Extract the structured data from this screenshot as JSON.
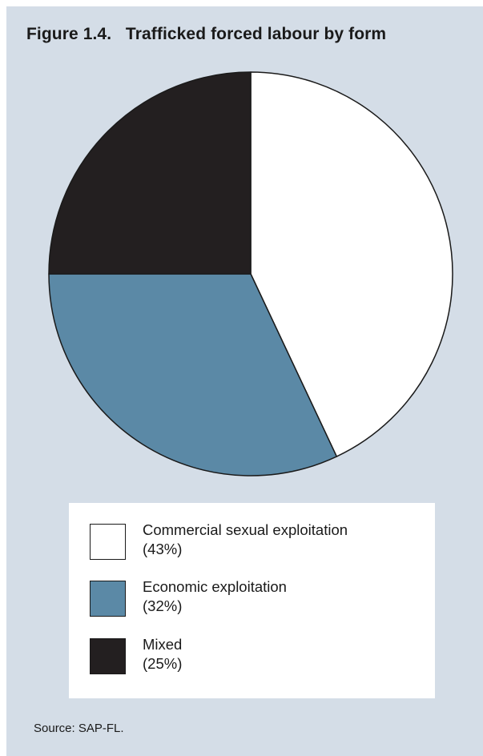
{
  "figure": {
    "title": "Figure 1.4.   Trafficked forced labour by form",
    "source": "Source: SAP-FL."
  },
  "chart_data": {
    "type": "pie",
    "categories": [
      "Commercial sexual exploitation",
      "Economic exploitation",
      "Mixed"
    ],
    "values": [
      43,
      32,
      25
    ],
    "unit": "%",
    "colors": [
      "#ffffff",
      "#5b89a6",
      "#231f20"
    ],
    "start_angle": "12 o'clock, clockwise",
    "legend_position": "bottom",
    "legend": [
      {
        "label": "Commercial sexual exploitation",
        "value_text": "(43%)",
        "color": "#ffffff"
      },
      {
        "label": "Economic exploitation",
        "value_text": "(32%)",
        "color": "#5b89a6"
      },
      {
        "label": "Mixed",
        "value_text": "(25%)",
        "color": "#231f20"
      }
    ]
  }
}
